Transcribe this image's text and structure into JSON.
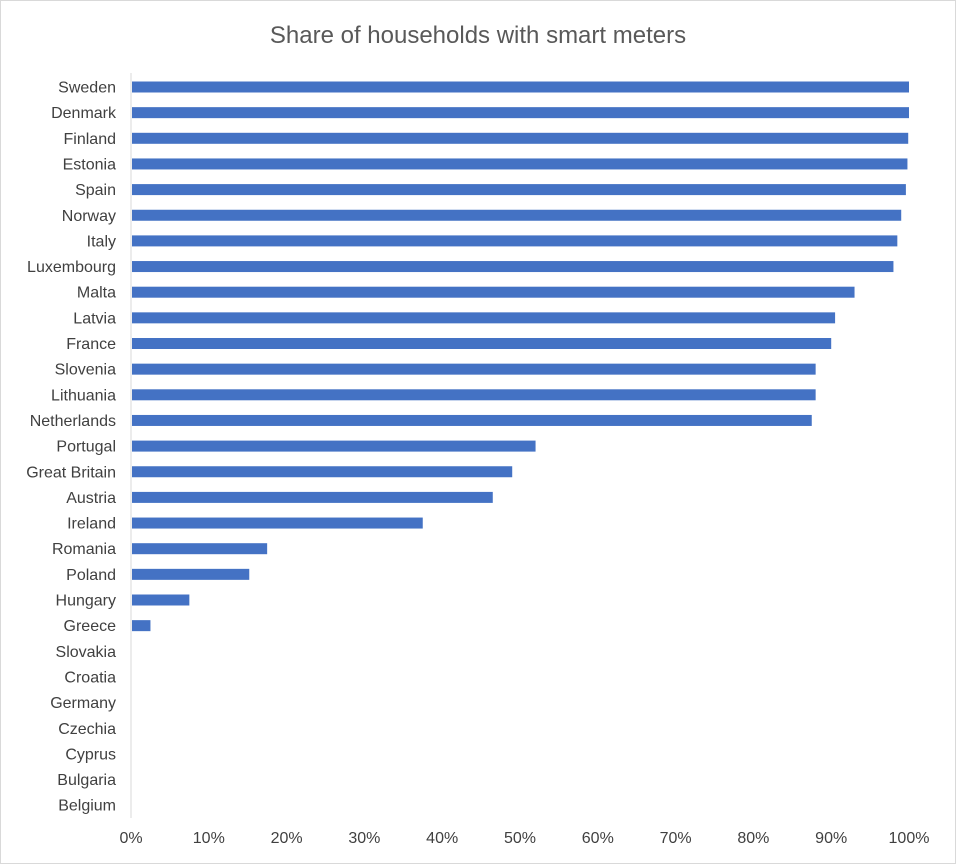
{
  "chart_data": {
    "type": "bar",
    "orientation": "horizontal",
    "title": "Share of households with smart meters",
    "xlabel": "",
    "ylabel": "",
    "xlim": [
      0,
      1
    ],
    "x_ticks": [
      "0%",
      "10%",
      "20%",
      "30%",
      "40%",
      "50%",
      "60%",
      "70%",
      "80%",
      "90%",
      "100%"
    ],
    "grid": false,
    "legend": "none",
    "bar_color": "#4472C4",
    "categories": [
      "Sweden",
      "Denmark",
      "Finland",
      "Estonia",
      "Spain",
      "Norway",
      "Italy",
      "Luxembourg",
      "Malta",
      "Latvia",
      "France",
      "Slovenia",
      "Lithuania",
      "Netherlands",
      "Portugal",
      "Great Britain",
      "Austria",
      "Ireland",
      "Romania",
      "Poland",
      "Hungary",
      "Greece",
      "Slovakia",
      "Croatia",
      "Germany",
      "Czechia",
      "Cyprus",
      "Bulgaria",
      "Belgium"
    ],
    "values": [
      1.0,
      1.0,
      0.999,
      0.998,
      0.996,
      0.99,
      0.985,
      0.98,
      0.93,
      0.905,
      0.9,
      0.88,
      0.88,
      0.875,
      0.52,
      0.49,
      0.465,
      0.375,
      0.175,
      0.152,
      0.075,
      0.025,
      0,
      0,
      0,
      0,
      0,
      0,
      0
    ]
  }
}
